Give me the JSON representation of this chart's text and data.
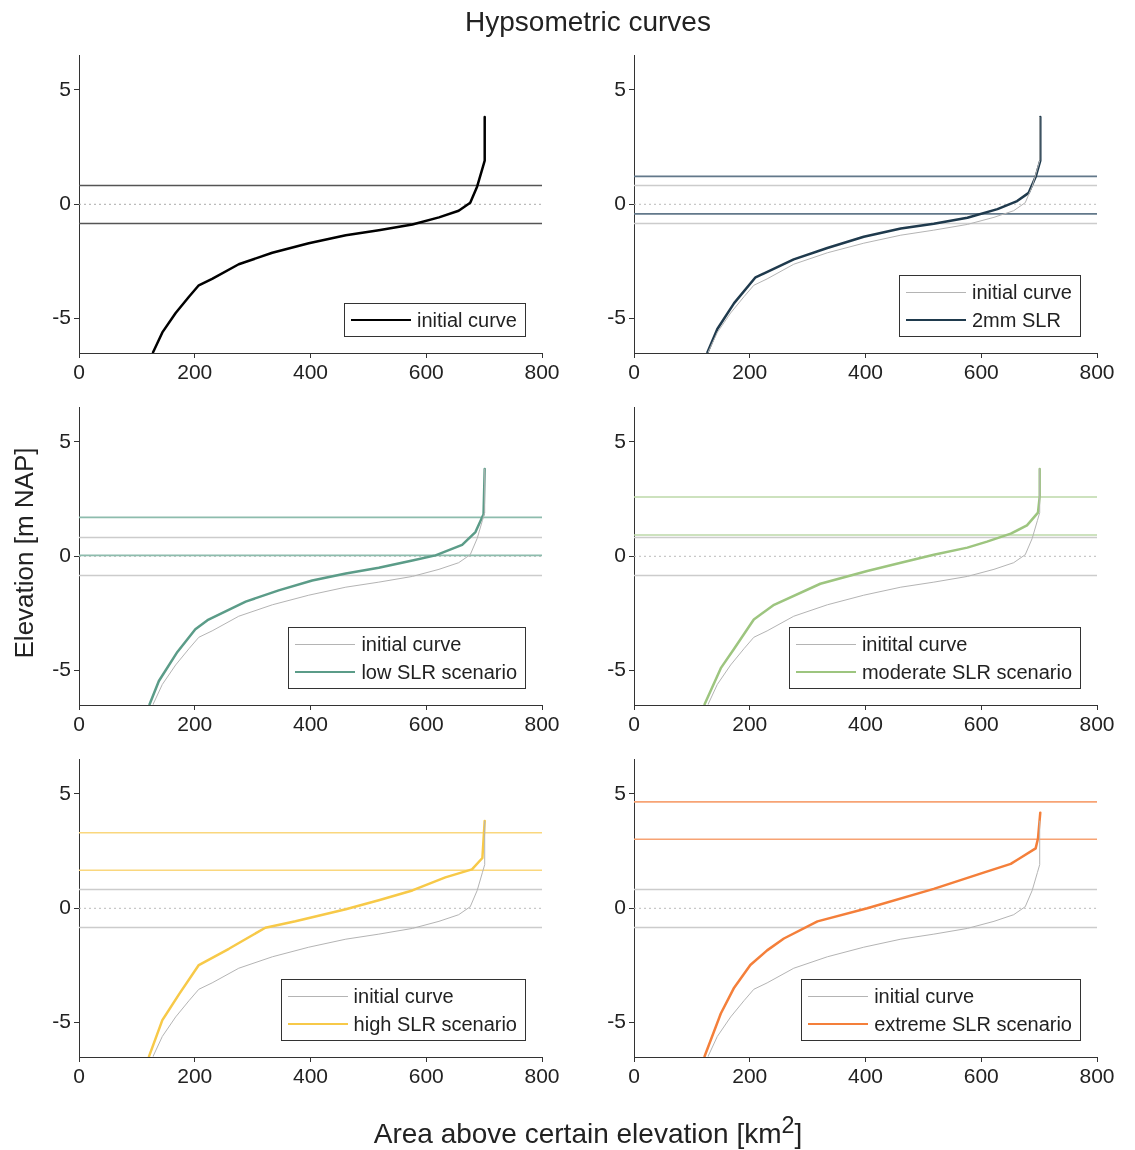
{
  "chart_data": [
    {
      "type": "line",
      "title": "Hypsometric curves",
      "xlim": [
        0,
        800
      ],
      "xticks": [
        0,
        200,
        400,
        600,
        800
      ],
      "ylim": [
        -6.5,
        6.5
      ],
      "yticks": [
        -5,
        0,
        5
      ],
      "grid": false,
      "legend": "bottom right",
      "series": [
        {
          "name": "initial curve",
          "color": "#000000",
          "x": [
            128,
            144,
            167,
            190,
            207,
            230,
            276,
            334,
            397,
            461,
            518,
            576,
            622,
            656,
            676,
            688,
            697,
            701,
            701
          ],
          "values": [
            -6.47,
            -5.6,
            -4.75,
            -4.04,
            -3.54,
            -3.26,
            -2.62,
            -2.12,
            -1.7,
            -1.35,
            -1.13,
            -0.88,
            -0.57,
            -0.28,
            0.07,
            0.78,
            1.56,
            1.91,
            3.82
          ]
        }
      ],
      "ref_lines": [
        {
          "axis": "y",
          "value": 0.82,
          "color": "#555555",
          "line_style": "solid"
        },
        {
          "axis": "y",
          "value": 0,
          "color": "#aaaaaa",
          "line_style": "dotted"
        },
        {
          "axis": "y",
          "value": -0.84,
          "color": "#555555",
          "line_style": "solid"
        }
      ]
    },
    {
      "type": "line",
      "xlim": [
        0,
        800
      ],
      "xticks": [
        0,
        200,
        400,
        600,
        800
      ],
      "ylim": [
        -6.5,
        6.5
      ],
      "yticks": [
        -5,
        0,
        5
      ],
      "grid": false,
      "legend": "bottom right",
      "series": [
        {
          "name": "initial curve",
          "color": "#b4b4b4",
          "x": [
            128,
            144,
            167,
            190,
            207,
            230,
            276,
            334,
            397,
            461,
            518,
            576,
            622,
            656,
            676,
            688,
            697,
            701,
            701
          ],
          "values": [
            -6.47,
            -5.6,
            -4.75,
            -4.04,
            -3.54,
            -3.26,
            -2.62,
            -2.12,
            -1.7,
            -1.35,
            -1.13,
            -0.88,
            -0.57,
            -0.28,
            0.07,
            0.78,
            1.56,
            1.91,
            3.82
          ]
        },
        {
          "name": "2mm SLR",
          "color": "#1f3a4d",
          "x": [
            127,
            144,
            173,
            210,
            276,
            334,
            397,
            461,
            518,
            576,
            628,
            662,
            682,
            694,
            702,
            702
          ],
          "values": [
            -6.47,
            -5.45,
            -4.32,
            -3.19,
            -2.41,
            -1.91,
            -1.42,
            -1.06,
            -0.85,
            -0.59,
            -0.21,
            0.14,
            0.5,
            1.2,
            1.91,
            3.82
          ]
        }
      ],
      "ref_lines": [
        {
          "axis": "y",
          "value": 0.82,
          "color": "#cccccc",
          "line_style": "solid"
        },
        {
          "axis": "y",
          "value": 0,
          "color": "#bbbbbb",
          "line_style": "dotted"
        },
        {
          "axis": "y",
          "value": -0.84,
          "color": "#cccccc",
          "line_style": "solid"
        },
        {
          "axis": "y",
          "value": 1.22,
          "color": "#62788a",
          "line_style": "solid"
        },
        {
          "axis": "y",
          "value": -0.42,
          "color": "#62788a",
          "line_style": "solid"
        }
      ]
    },
    {
      "type": "line",
      "ylabel": "Elevation [m NAP]",
      "xlim": [
        0,
        800
      ],
      "xticks": [
        0,
        200,
        400,
        600,
        800
      ],
      "ylim": [
        -6.5,
        6.5
      ],
      "yticks": [
        -5,
        0,
        5
      ],
      "grid": false,
      "legend": "bottom right",
      "series": [
        {
          "name": "initial curve",
          "color": "#b4b4b4",
          "x": [
            128,
            144,
            167,
            190,
            207,
            230,
            276,
            334,
            397,
            461,
            518,
            576,
            622,
            656,
            676,
            688,
            697,
            701,
            701
          ],
          "values": [
            -6.47,
            -5.6,
            -4.75,
            -4.04,
            -3.54,
            -3.26,
            -2.62,
            -2.12,
            -1.7,
            -1.35,
            -1.13,
            -0.88,
            -0.57,
            -0.28,
            0.07,
            0.78,
            1.56,
            1.91,
            3.82
          ]
        },
        {
          "name": "low SLR scenario",
          "color": "#5b9c88",
          "x": [
            122,
            138,
            170,
            201,
            222,
            288,
            345,
            403,
            461,
            518,
            576,
            616,
            662,
            685,
            699,
            701
          ],
          "values": [
            -6.47,
            -5.45,
            -4.18,
            -3.19,
            -2.79,
            -1.98,
            -1.49,
            -1.06,
            -0.75,
            -0.5,
            -0.18,
            0.04,
            0.5,
            1.06,
            1.84,
            3.82
          ]
        }
      ],
      "ref_lines": [
        {
          "axis": "y",
          "value": 0.82,
          "color": "#cccccc",
          "line_style": "solid"
        },
        {
          "axis": "y",
          "value": 0,
          "color": "#bbbbbb",
          "line_style": "dotted"
        },
        {
          "axis": "y",
          "value": -0.84,
          "color": "#cccccc",
          "line_style": "solid"
        },
        {
          "axis": "y",
          "value": 1.7,
          "color": "#8dbcad",
          "line_style": "solid"
        },
        {
          "axis": "y",
          "value": 0.04,
          "color": "#8dbcad",
          "line_style": "solid"
        }
      ]
    },
    {
      "type": "line",
      "xlim": [
        0,
        800
      ],
      "xticks": [
        0,
        200,
        400,
        600,
        800
      ],
      "ylim": [
        -6.5,
        6.5
      ],
      "yticks": [
        -5,
        0,
        5
      ],
      "grid": false,
      "legend": "bottom right",
      "series": [
        {
          "name": "initital curve",
          "color": "#b4b4b4",
          "x": [
            128,
            144,
            167,
            190,
            207,
            230,
            276,
            334,
            397,
            461,
            518,
            576,
            622,
            656,
            676,
            688,
            697,
            701,
            701
          ],
          "values": [
            -6.47,
            -5.6,
            -4.75,
            -4.04,
            -3.54,
            -3.26,
            -2.62,
            -2.12,
            -1.7,
            -1.35,
            -1.13,
            -0.88,
            -0.57,
            -0.28,
            0.07,
            0.78,
            1.56,
            1.91,
            3.82
          ]
        },
        {
          "name": "moderate SLR scenario",
          "color": "#9dc57f",
          "x": [
            122,
            150,
            173,
            207,
            242,
            322,
            403,
            461,
            518,
            576,
            610,
            651,
            679,
            698,
            701,
            701
          ],
          "values": [
            -6.47,
            -4.89,
            -4.04,
            -2.76,
            -2.12,
            -1.2,
            -0.64,
            -0.28,
            0.07,
            0.38,
            0.64,
            0.99,
            1.35,
            1.91,
            2.62,
            3.82
          ]
        }
      ],
      "ref_lines": [
        {
          "axis": "y",
          "value": 0.82,
          "color": "#cccccc",
          "line_style": "solid"
        },
        {
          "axis": "y",
          "value": 0,
          "color": "#bbbbbb",
          "line_style": "dotted"
        },
        {
          "axis": "y",
          "value": -0.84,
          "color": "#cccccc",
          "line_style": "solid"
        },
        {
          "axis": "y",
          "value": 2.59,
          "color": "#bcd8a8",
          "line_style": "solid"
        },
        {
          "axis": "y",
          "value": 0.93,
          "color": "#bcd8a8",
          "line_style": "solid"
        }
      ]
    },
    {
      "type": "line",
      "xlabel": "Area above certain elevation [km$^{2}$]",
      "xlim": [
        0,
        800
      ],
      "xticks": [
        0,
        200,
        400,
        600,
        800
      ],
      "ylim": [
        -6.5,
        6.5
      ],
      "yticks": [
        -5,
        0,
        5
      ],
      "grid": false,
      "legend": "bottom right",
      "series": [
        {
          "name": "initial curve",
          "color": "#b4b4b4",
          "x": [
            128,
            144,
            167,
            190,
            207,
            230,
            276,
            334,
            397,
            461,
            518,
            576,
            622,
            656,
            676,
            688,
            697,
            701,
            701
          ],
          "values": [
            -6.47,
            -5.6,
            -4.75,
            -4.04,
            -3.54,
            -3.26,
            -2.62,
            -2.12,
            -1.7,
            -1.35,
            -1.13,
            -0.88,
            -0.57,
            -0.28,
            0.07,
            0.78,
            1.56,
            1.91,
            3.82
          ]
        },
        {
          "name": "high SLR scenario",
          "color": "#f7c948",
          "x": [
            121,
            144,
            173,
            207,
            259,
            322,
            374,
            461,
            518,
            576,
            633,
            679,
            697,
            701
          ],
          "values": [
            -6.47,
            -4.89,
            -3.75,
            -2.48,
            -1.77,
            -0.85,
            -0.57,
            -0.04,
            0.35,
            0.78,
            1.35,
            1.7,
            2.2,
            3.82
          ]
        }
      ],
      "ref_lines": [
        {
          "axis": "y",
          "value": 0.82,
          "color": "#cccccc",
          "line_style": "solid"
        },
        {
          "axis": "y",
          "value": 0,
          "color": "#bbbbbb",
          "line_style": "dotted"
        },
        {
          "axis": "y",
          "value": -0.84,
          "color": "#cccccc",
          "line_style": "solid"
        },
        {
          "axis": "y",
          "value": 3.3,
          "color": "#fad77e",
          "line_style": "solid"
        },
        {
          "axis": "y",
          "value": 1.66,
          "color": "#fad77e",
          "line_style": "solid"
        }
      ]
    },
    {
      "type": "line",
      "xlim": [
        0,
        800
      ],
      "xticks": [
        0,
        200,
        400,
        600,
        800
      ],
      "ylim": [
        -6.5,
        6.5
      ],
      "yticks": [
        -5,
        0,
        5
      ],
      "grid": false,
      "legend": "bottom right",
      "series": [
        {
          "name": "initial curve",
          "color": "#b4b4b4",
          "x": [
            128,
            144,
            167,
            190,
            207,
            230,
            276,
            334,
            397,
            461,
            518,
            576,
            622,
            656,
            676,
            688,
            697,
            701,
            701
          ],
          "values": [
            -6.47,
            -5.6,
            -4.75,
            -4.04,
            -3.54,
            -3.26,
            -2.62,
            -2.12,
            -1.7,
            -1.35,
            -1.13,
            -0.88,
            -0.57,
            -0.28,
            0.07,
            0.78,
            1.56,
            1.91,
            3.82
          ]
        },
        {
          "name": "extreme SLR scenario",
          "color": "#f47f3a",
          "x": [
            122,
            150,
            173,
            201,
            230,
            259,
            317,
            403,
            518,
            604,
            651,
            694,
            698,
            702
          ],
          "values": [
            -6.47,
            -4.6,
            -3.47,
            -2.48,
            -1.84,
            -1.32,
            -0.57,
            0,
            0.85,
            1.56,
            1.94,
            2.62,
            3.05,
            4.18
          ]
        }
      ],
      "ref_lines": [
        {
          "axis": "y",
          "value": 0.82,
          "color": "#cccccc",
          "line_style": "solid"
        },
        {
          "axis": "y",
          "value": 0,
          "color": "#bbbbbb",
          "line_style": "dotted"
        },
        {
          "axis": "y",
          "value": -0.84,
          "color": "#cccccc",
          "line_style": "solid"
        },
        {
          "axis": "y",
          "value": 4.65,
          "color": "#f7a374",
          "line_style": "solid"
        },
        {
          "axis": "y",
          "value": 3.02,
          "color": "#f7a374",
          "line_style": "solid"
        }
      ]
    }
  ]
}
